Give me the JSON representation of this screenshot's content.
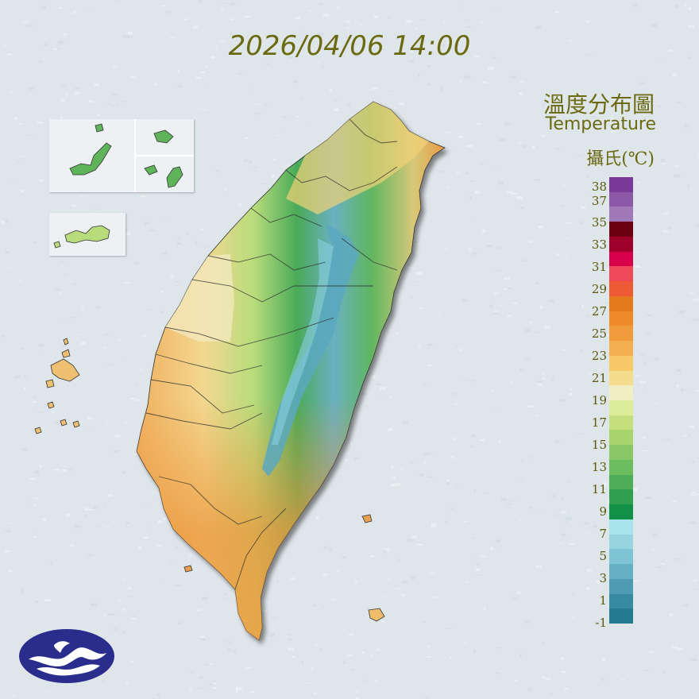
{
  "timestamp": "2026/04/06 14:00",
  "legend": {
    "title_zh": "溫度分布圖",
    "title_en": "Temperature",
    "unit": "攝氏(℃)",
    "labels": [
      "38",
      "37",
      "35",
      "33",
      "31",
      "29",
      "27",
      "25",
      "23",
      "21",
      "19",
      "17",
      "15",
      "13",
      "11",
      "9",
      "7",
      "5",
      "3",
      "1",
      "-1"
    ],
    "colors": [
      "#7a3a98",
      "#8c58a8",
      "#a279b8",
      "#6a0010",
      "#a0002c",
      "#d8004a",
      "#f04a5a",
      "#ee5a36",
      "#e6781e",
      "#ed8a2a",
      "#f09c3c",
      "#f4b050",
      "#f6c868",
      "#f4dc8c",
      "#f2eec4",
      "#dcec98",
      "#c4e07c",
      "#a8d46e",
      "#8ac866",
      "#6cbc60",
      "#4eae58",
      "#30a050",
      "#129048",
      "#a8e4ec",
      "#96d4e0",
      "#7ec4d4",
      "#66b0c4",
      "#4e9cb4",
      "#388aa2",
      "#237a92"
    ]
  },
  "logo": {
    "icon": "cwa-logo-icon"
  }
}
